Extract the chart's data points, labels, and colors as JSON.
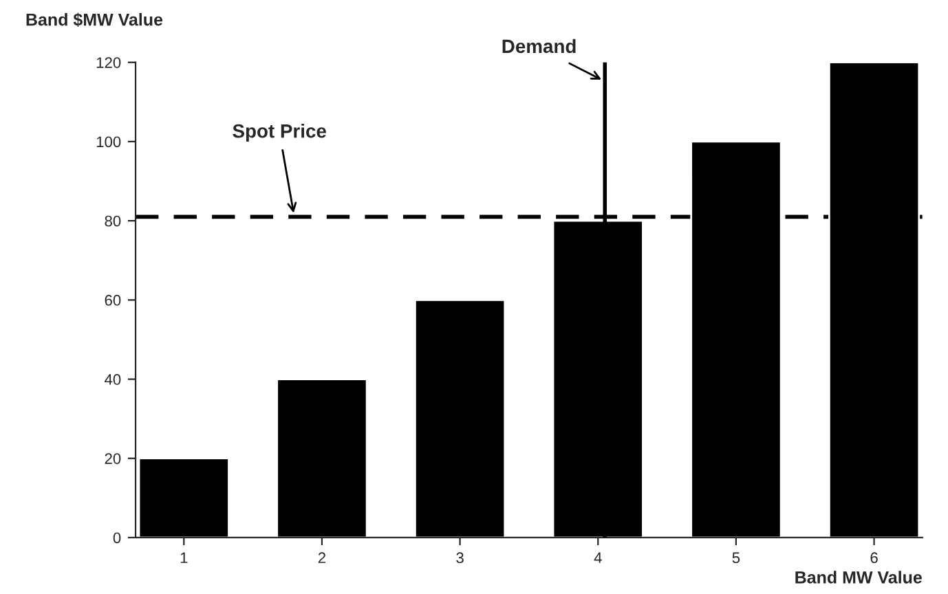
{
  "chart_data": {
    "type": "bar",
    "xlabel": "Band MW Value",
    "ylabel": "Band $MW Value",
    "x": [
      1,
      2,
      3,
      4,
      5,
      6
    ],
    "values": [
      20,
      40,
      60,
      80,
      100,
      120
    ],
    "color": "#000000",
    "xlim": [
      0.65,
      6.35
    ],
    "xticks": [
      1,
      2,
      3,
      4,
      5,
      6
    ],
    "ylim": [
      0,
      120
    ],
    "yticks": [
      0,
      20,
      40,
      60,
      80,
      100,
      120
    ],
    "grid": false,
    "ref_lines": [
      {
        "axis": "y",
        "value": 81,
        "label": "Spot Price",
        "color": "#000000",
        "line_style": "dashed"
      },
      {
        "axis": "x",
        "value": 4.05,
        "label": "Demand",
        "color": "#000000",
        "line_style": "solid"
      }
    ]
  }
}
